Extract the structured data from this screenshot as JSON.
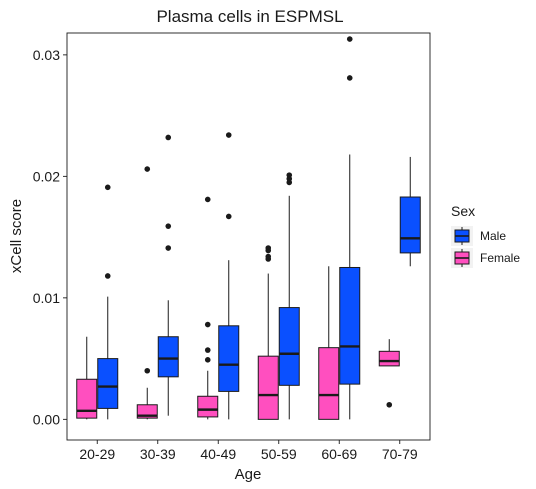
{
  "chart_data": {
    "type": "boxplot",
    "title": "Plasma cells in ESPMSL",
    "xlabel": "Age",
    "ylabel": "xCell score",
    "categories": [
      "20-29",
      "30-39",
      "40-49",
      "50-59",
      "60-69",
      "70-79"
    ],
    "ylim": [
      -0.0017,
      0.0318
    ],
    "yticks": [
      0,
      0.01,
      0.02,
      0.03
    ],
    "ytick_labels": [
      "0.00",
      "0.01",
      "0.02",
      "0.03"
    ],
    "grid": false,
    "legend": {
      "title": "Sex",
      "position": "right",
      "entries": [
        "Male",
        "Female"
      ]
    },
    "series": [
      {
        "name": "Female",
        "color": "#ff4fbf",
        "boxes": [
          {
            "category": "20-29",
            "whisker_low": 0.0,
            "q1": 0.0001,
            "median": 0.0007,
            "q3": 0.0033,
            "whisker_high": 0.0068,
            "outliers": []
          },
          {
            "category": "30-39",
            "whisker_low": 0.0,
            "q1": 0.0001,
            "median": 0.0003,
            "q3": 0.0012,
            "whisker_high": 0.0026,
            "outliers": [
              0.004,
              0.0206
            ]
          },
          {
            "category": "40-49",
            "whisker_low": 0.0,
            "q1": 0.0002,
            "median": 0.0008,
            "q3": 0.0019,
            "whisker_high": 0.004,
            "outliers": [
              0.0049,
              0.0057,
              0.0078,
              0.0181
            ]
          },
          {
            "category": "50-59",
            "whisker_low": 0.0,
            "q1": 0.0,
            "median": 0.002,
            "q3": 0.0052,
            "whisker_high": 0.012,
            "outliers": [
              0.0132,
              0.0134,
              0.0139,
              0.0141
            ]
          },
          {
            "category": "60-69",
            "whisker_low": 0.0,
            "q1": 0.0,
            "median": 0.002,
            "q3": 0.0059,
            "whisker_high": 0.0126,
            "outliers": []
          },
          {
            "category": "70-79",
            "whisker_low": 0.0044,
            "q1": 0.0044,
            "median": 0.0048,
            "q3": 0.0056,
            "whisker_high": 0.0066,
            "outliers": [
              0.0012
            ]
          }
        ]
      },
      {
        "name": "Male",
        "color": "#0a50ff",
        "boxes": [
          {
            "category": "20-29",
            "whisker_low": 0.0,
            "q1": 0.0009,
            "median": 0.0027,
            "q3": 0.005,
            "whisker_high": 0.0101,
            "outliers": [
              0.0118,
              0.0191
            ]
          },
          {
            "category": "30-39",
            "whisker_low": 0.0003,
            "q1": 0.0035,
            "median": 0.005,
            "q3": 0.0068,
            "whisker_high": 0.0098,
            "outliers": [
              0.0141,
              0.0159,
              0.0232
            ]
          },
          {
            "category": "40-49",
            "whisker_low": 0.0,
            "q1": 0.0023,
            "median": 0.0045,
            "q3": 0.0077,
            "whisker_high": 0.0131,
            "outliers": [
              0.0167,
              0.0234
            ]
          },
          {
            "category": "50-59",
            "whisker_low": 0.0,
            "q1": 0.0028,
            "median": 0.0054,
            "q3": 0.0092,
            "whisker_high": 0.0184,
            "outliers": [
              0.0195,
              0.0198,
              0.0201
            ]
          },
          {
            "category": "60-69",
            "whisker_low": 0.0,
            "q1": 0.0029,
            "median": 0.006,
            "q3": 0.0125,
            "whisker_high": 0.0218,
            "outliers": [
              0.0281,
              0.0313
            ]
          },
          {
            "category": "70-79",
            "whisker_low": 0.0126,
            "q1": 0.0137,
            "median": 0.0149,
            "q3": 0.0183,
            "whisker_high": 0.0216,
            "outliers": []
          }
        ]
      }
    ]
  }
}
